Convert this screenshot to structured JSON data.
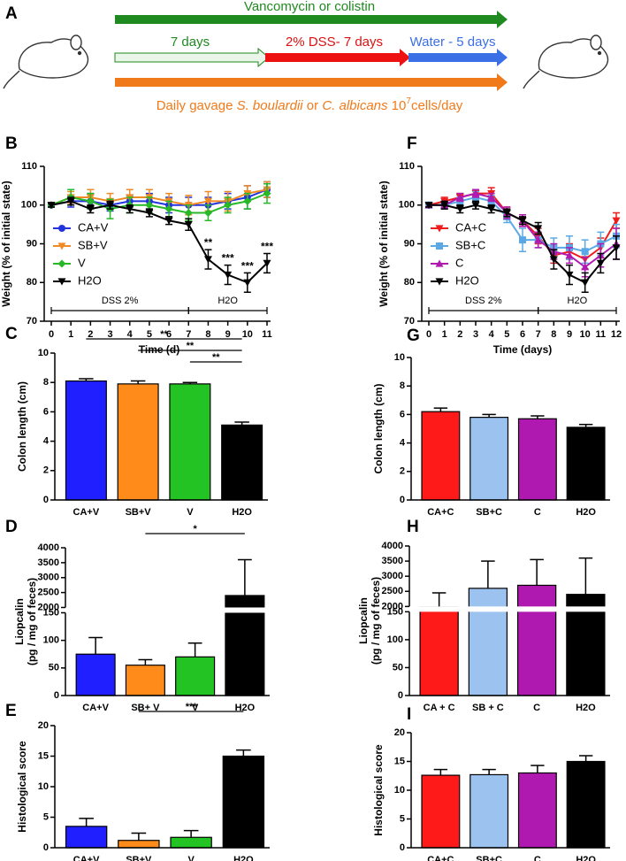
{
  "schematic": {
    "panel": "A",
    "top_arrow": "Vancomycin or colistin",
    "phase1": "7 days",
    "phase2": "2% DSS- 7 days",
    "phase3": "Water - 5 days",
    "gavage": [
      "Daily gavage ",
      "S. boulardii",
      " or ",
      "C. albicans",
      " 10",
      "7",
      "cells/day"
    ]
  },
  "chart_data": [
    {
      "type": "line",
      "panel": "B",
      "xlabel": "Time (d)",
      "ylabel": "Weight (% of initial state)",
      "x": [
        0,
        1,
        2,
        3,
        4,
        5,
        6,
        7,
        8,
        9,
        10,
        11
      ],
      "xlim": [
        0,
        11
      ],
      "xticks": [
        0,
        1,
        2,
        3,
        4,
        5,
        6,
        7,
        8,
        9,
        10,
        11
      ],
      "ylim": [
        70,
        110
      ],
      "yticks": [
        70,
        80,
        90,
        100,
        110
      ],
      "legend": "left",
      "series": [
        {
          "name": "CA+V",
          "color": "#2233dd",
          "marker": "circle",
          "values": [
            100,
            101,
            101,
            100,
            101,
            101,
            100,
            100,
            100,
            101,
            102,
            104
          ],
          "errors": [
            0.5,
            1.5,
            2,
            1.5,
            1.5,
            2,
            2,
            2,
            2,
            2,
            3,
            2
          ]
        },
        {
          "name": "SB+V",
          "color": "#f08a24",
          "marker": "triangle-down",
          "values": [
            100,
            102,
            102,
            101,
            102,
            102,
            101,
            100,
            101,
            101,
            103,
            104
          ],
          "errors": [
            0.5,
            1.5,
            2,
            2,
            2,
            2,
            2,
            2.5,
            2.5,
            2.5,
            2,
            2
          ]
        },
        {
          "name": "V",
          "color": "#27b827",
          "marker": "diamond",
          "values": [
            100,
            102,
            101,
            99,
            100,
            100,
            99,
            98,
            98,
            100,
            101,
            103
          ],
          "errors": [
            0.5,
            2,
            2,
            2.5,
            2,
            2,
            2,
            2,
            2,
            2,
            2,
            2.5
          ]
        },
        {
          "name": "H2O",
          "color": "#000000",
          "marker": "triangle-down",
          "values": [
            100,
            101,
            99,
            100,
            99,
            98,
            96,
            95,
            86,
            82,
            80,
            85
          ],
          "errors": [
            0.5,
            1,
            1,
            1,
            1,
            1,
            1,
            1.5,
            2.5,
            2.5,
            2.5,
            2.5
          ]
        }
      ],
      "annotations": [
        {
          "text": "**",
          "x": 8,
          "series": "H2O"
        },
        {
          "text": "***",
          "x": 9,
          "series": "H2O"
        },
        {
          "text": "***",
          "x": 10,
          "series": "H2O"
        },
        {
          "text": "***",
          "x": 11,
          "series": "H2O"
        }
      ],
      "phases": [
        {
          "label": "DSS 2%",
          "x": [
            0,
            7
          ]
        },
        {
          "label": "H2O",
          "x": [
            7,
            11
          ]
        }
      ]
    },
    {
      "type": "bar",
      "panel": "C",
      "ylabel": "Colon length (cm)",
      "categories": [
        "CA+V",
        "SB+V",
        "V",
        "H2O"
      ],
      "values": [
        8.1,
        7.9,
        7.9,
        5.1
      ],
      "errors": [
        0.15,
        0.2,
        0.1,
        0.2
      ],
      "colors": [
        "#1f1fff",
        "#ff8c1a",
        "#22c322",
        "#000000"
      ],
      "ylim": [
        0,
        10
      ],
      "yticks": [
        0,
        2,
        4,
        6,
        8,
        10
      ],
      "brackets": [
        {
          "text": "**",
          "between": [
            "CA+V",
            "H2O"
          ]
        },
        {
          "text": "**",
          "between": [
            "SB+V",
            "H2O"
          ]
        },
        {
          "text": "**",
          "between": [
            "V",
            "H2O"
          ]
        }
      ]
    },
    {
      "type": "bar",
      "panel": "D",
      "ylabel": [
        "Liopcalin",
        "(pg / mg of feces)"
      ],
      "categories": [
        "CA+V",
        "SB+ V",
        "V",
        "H2O"
      ],
      "values": [
        75,
        55,
        70,
        2400
      ],
      "errors": [
        30,
        10,
        25,
        1200
      ],
      "colors": [
        "#1f1fff",
        "#ff8c1a",
        "#22c322",
        "#000000"
      ],
      "ylim": [
        0,
        4000
      ],
      "ybreak": [
        150,
        2000
      ],
      "yticks": [
        0,
        50,
        100,
        150,
        2000,
        2500,
        3000,
        3500,
        4000
      ],
      "brackets": [
        {
          "text": "*",
          "between": [
            "SB+ V",
            "H2O"
          ]
        }
      ]
    },
    {
      "type": "bar",
      "panel": "E",
      "ylabel": "Histological score",
      "categories": [
        "CA+V",
        "SB+V",
        "V",
        "H2O"
      ],
      "values": [
        3.5,
        1.2,
        1.7,
        15
      ],
      "errors": [
        1.3,
        1.2,
        1.1,
        1
      ],
      "colors": [
        "#1f1fff",
        "#ff8c1a",
        "#22c322",
        "#000000"
      ],
      "ylim": [
        0,
        20
      ],
      "yticks": [
        0,
        5,
        10,
        15,
        20
      ],
      "brackets": [
        {
          "text": "***",
          "between": [
            "SB+V",
            "H2O"
          ]
        }
      ]
    },
    {
      "type": "line",
      "panel": "F",
      "xlabel": "Time (days)",
      "ylabel": "Weight (% of initial state)",
      "x": [
        0,
        1,
        2,
        3,
        4,
        5,
        6,
        7,
        8,
        9,
        10,
        11,
        12
      ],
      "xlim": [
        0,
        12
      ],
      "xticks": [
        0,
        1,
        2,
        3,
        4,
        5,
        6,
        7,
        8,
        9,
        10,
        11,
        12
      ],
      "ylim": [
        70,
        110
      ],
      "yticks": [
        70,
        80,
        90,
        100,
        110
      ],
      "legend": "left",
      "series": [
        {
          "name": "CA+C",
          "color": "#ee1c1c",
          "marker": "triangle-down",
          "values": [
            100,
            101,
            102,
            103,
            103,
            98,
            96,
            92,
            87,
            88,
            86,
            89,
            96
          ],
          "errors": [
            0.5,
            1,
            1,
            1,
            1.5,
            1.5,
            1.5,
            2,
            2,
            2,
            2.5,
            2.5,
            2
          ]
        },
        {
          "name": "SB+C",
          "color": "#5aa9e6",
          "marker": "square",
          "values": [
            100,
            100,
            101,
            102,
            101,
            97,
            91,
            91,
            89,
            89,
            88,
            90,
            92
          ],
          "errors": [
            0.5,
            1,
            1,
            1.5,
            1.5,
            1.5,
            3,
            2,
            2.5,
            3,
            3,
            3,
            3
          ]
        },
        {
          "name": "C",
          "color": "#b019b0",
          "marker": "triangle-up",
          "values": [
            100,
            100,
            102,
            103,
            102,
            98,
            96,
            91,
            88,
            87,
            84,
            87,
            90
          ],
          "errors": [
            0.5,
            1,
            1,
            1,
            1,
            1.5,
            1.5,
            2,
            2,
            2,
            2.5,
            3,
            4
          ]
        },
        {
          "name": "H2O",
          "color": "#000000",
          "marker": "triangle-down",
          "values": [
            100,
            100,
            99,
            100,
            99,
            98,
            96,
            94,
            86,
            82,
            80,
            85,
            89
          ],
          "errors": [
            0.5,
            1,
            1,
            1,
            1,
            1,
            1,
            1.5,
            2.5,
            2.5,
            2.5,
            2.5,
            3
          ]
        }
      ],
      "phases": [
        {
          "label": "DSS 2%",
          "x": [
            0,
            7
          ]
        },
        {
          "label": "H2O",
          "x": [
            7,
            12
          ]
        }
      ]
    },
    {
      "type": "bar",
      "panel": "G",
      "ylabel": "Colon length (cm)",
      "categories": [
        "CA+C",
        "SB+C",
        "C",
        "H2O"
      ],
      "values": [
        6.2,
        5.8,
        5.7,
        5.1
      ],
      "errors": [
        0.25,
        0.2,
        0.2,
        0.2
      ],
      "colors": [
        "#ff1a1a",
        "#9cc3ef",
        "#b019b0",
        "#000000"
      ],
      "ylim": [
        0,
        10
      ],
      "yticks": [
        0,
        2,
        4,
        6,
        8,
        10
      ]
    },
    {
      "type": "bar",
      "panel": "H",
      "ylabel": [
        "Liopcalin",
        "(pg / mg of feces)"
      ],
      "categories": [
        "CA + C",
        "SB + C",
        "C",
        "H2O"
      ],
      "values": [
        1800,
        2600,
        2700,
        2400
      ],
      "errors": [
        650,
        900,
        850,
        1200
      ],
      "colors": [
        "#ff1a1a",
        "#9cc3ef",
        "#b019b0",
        "#000000"
      ],
      "ylim": [
        0,
        4000
      ],
      "ybreak": [
        150,
        2000
      ],
      "yticks": [
        0,
        50,
        100,
        150,
        2000,
        2500,
        3000,
        3500,
        4000
      ]
    },
    {
      "type": "bar",
      "panel": "I",
      "ylabel": "Histological score",
      "categories": [
        "CA+C",
        "SB+C",
        "C",
        "H2O"
      ],
      "values": [
        12.6,
        12.7,
        13,
        15
      ],
      "errors": [
        1,
        0.9,
        1.3,
        1
      ],
      "colors": [
        "#ff1a1a",
        "#9cc3ef",
        "#b019b0",
        "#000000"
      ],
      "ylim": [
        0,
        20
      ],
      "yticks": [
        0,
        5,
        10,
        15,
        20
      ]
    }
  ]
}
